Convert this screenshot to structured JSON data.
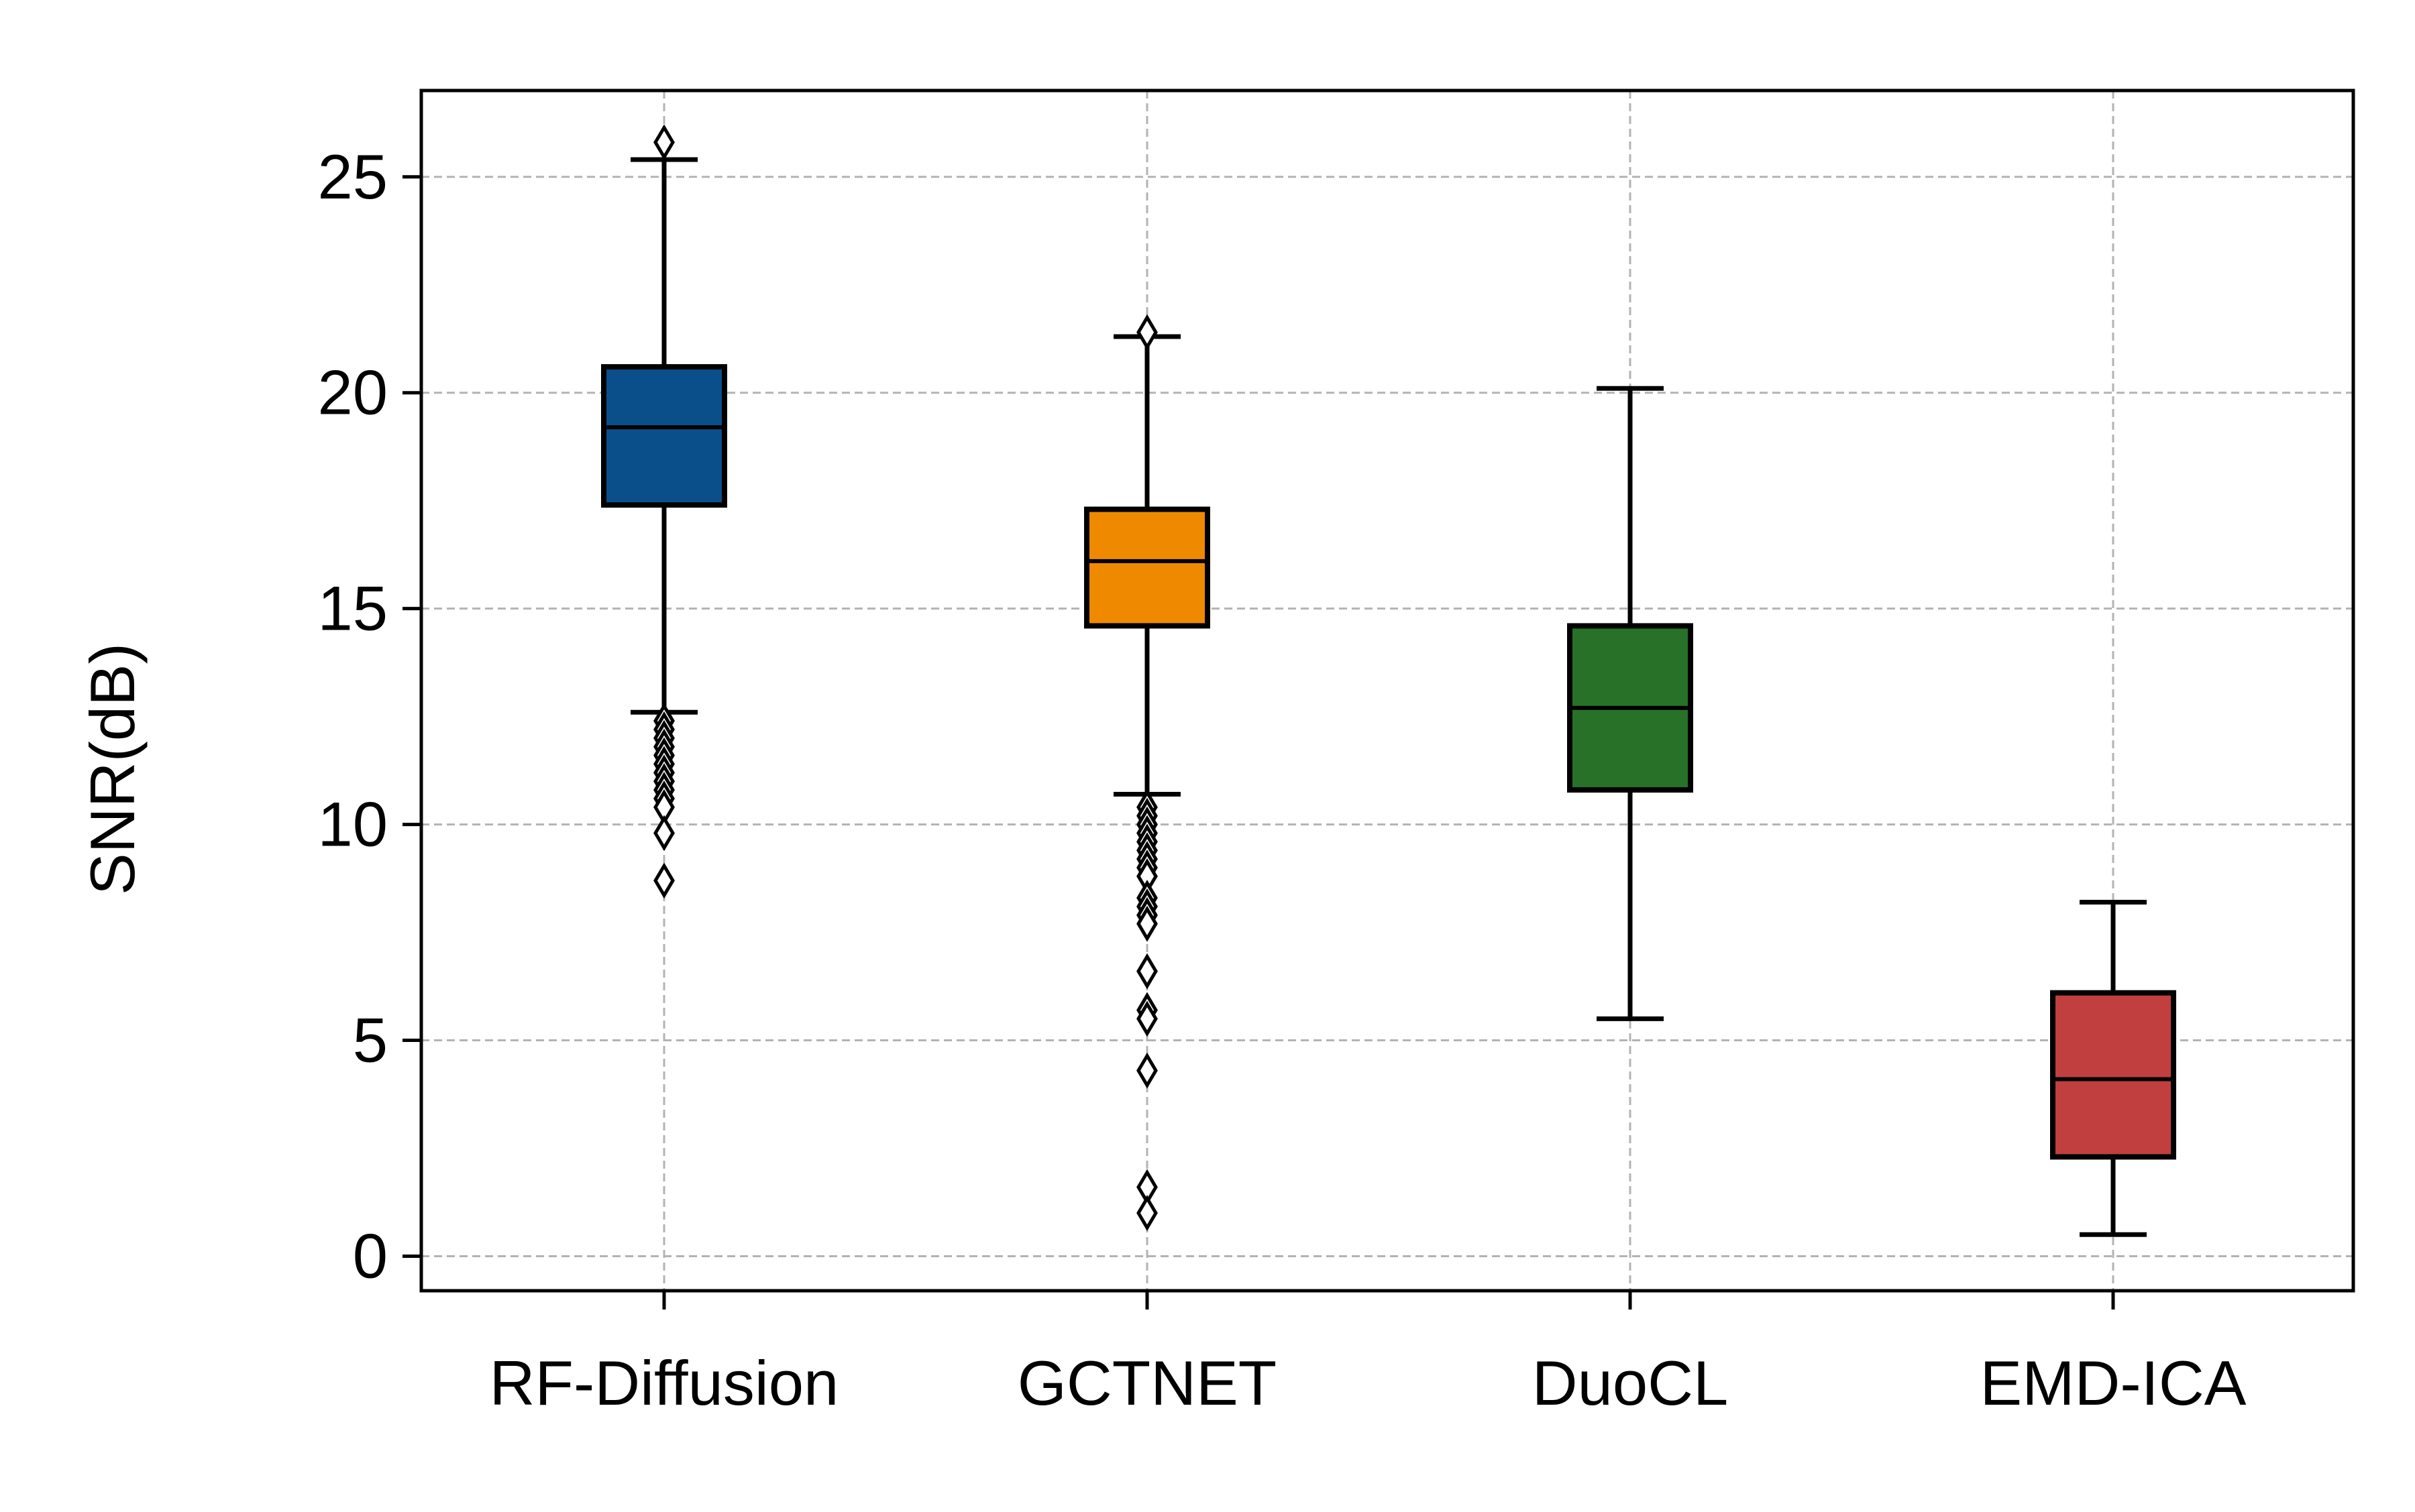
{
  "chart_data": {
    "type": "box",
    "title": "",
    "xlabel": "",
    "ylabel": "SNR(dB)",
    "ylim": [
      -0.8,
      27
    ],
    "yticks": [
      0,
      5,
      10,
      15,
      20,
      25
    ],
    "grid": true,
    "legend": "none",
    "categories": [
      "RF-Diffusion",
      "GCTNET",
      "DuoCL",
      "EMD-ICA"
    ],
    "series": [
      {
        "category": "RF-Diffusion",
        "color": "#0b4f8a",
        "whisker_low": 12.6,
        "q1": 17.4,
        "median": 19.2,
        "q3": 20.6,
        "whisker_high": 25.4,
        "outliers": [
          25.8,
          12.4,
          12.2,
          12.0,
          11.8,
          11.6,
          11.4,
          11.2,
          11.0,
          10.8,
          10.6,
          10.4,
          9.8,
          8.7
        ]
      },
      {
        "category": "GCTNET",
        "color": "#ef8a00",
        "whisker_low": 10.7,
        "q1": 14.6,
        "median": 16.1,
        "q3": 17.3,
        "whisker_high": 21.3,
        "outliers": [
          21.4,
          10.4,
          10.2,
          10.0,
          9.8,
          9.6,
          9.4,
          9.2,
          9.0,
          8.8,
          8.3,
          8.1,
          7.9,
          7.7,
          6.6,
          5.7,
          5.5,
          4.3,
          1.6,
          1.0
        ]
      },
      {
        "category": "DuoCL",
        "color": "#287128",
        "whisker_low": 5.5,
        "q1": 10.8,
        "median": 12.7,
        "q3": 14.6,
        "whisker_high": 20.1,
        "outliers": []
      },
      {
        "category": "EMD-ICA",
        "color": "#c23f3f",
        "whisker_low": 0.5,
        "q1": 2.3,
        "median": 4.1,
        "q3": 6.1,
        "whisker_high": 8.2,
        "outliers": []
      }
    ]
  }
}
